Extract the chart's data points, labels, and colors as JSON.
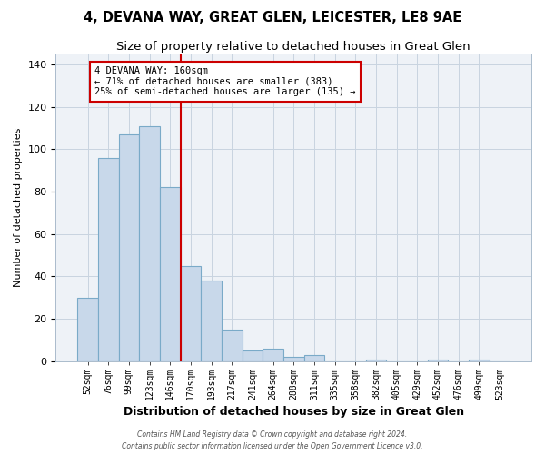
{
  "title": "4, DEVANA WAY, GREAT GLEN, LEICESTER, LE8 9AE",
  "subtitle": "Size of property relative to detached houses in Great Glen",
  "xlabel": "Distribution of detached houses by size in Great Glen",
  "ylabel": "Number of detached properties",
  "bar_labels": [
    "52sqm",
    "76sqm",
    "99sqm",
    "123sqm",
    "146sqm",
    "170sqm",
    "193sqm",
    "217sqm",
    "241sqm",
    "264sqm",
    "288sqm",
    "311sqm",
    "335sqm",
    "358sqm",
    "382sqm",
    "405sqm",
    "429sqm",
    "452sqm",
    "476sqm",
    "499sqm",
    "523sqm"
  ],
  "bar_values": [
    30,
    96,
    107,
    111,
    82,
    45,
    38,
    15,
    5,
    6,
    2,
    3,
    0,
    0,
    1,
    0,
    0,
    1,
    0,
    1,
    0
  ],
  "bar_color": "#c8d8ea",
  "bar_edge_color": "#7aaac8",
  "vline_color": "#cc0000",
  "annotation_title": "4 DEVANA WAY: 160sqm",
  "annotation_line1": "← 71% of detached houses are smaller (383)",
  "annotation_line2": "25% of semi-detached houses are larger (135) →",
  "annotation_box_color": "#cc0000",
  "ylim": [
    0,
    145
  ],
  "yticks": [
    0,
    20,
    40,
    60,
    80,
    100,
    120,
    140
  ],
  "footer1": "Contains HM Land Registry data © Crown copyright and database right 2024.",
  "footer2": "Contains public sector information licensed under the Open Government Licence v3.0.",
  "title_fontsize": 10.5,
  "subtitle_fontsize": 9.5,
  "xlabel_fontsize": 9,
  "ylabel_fontsize": 8,
  "bg_color": "#eef2f7",
  "grid_color": "#c8d4e0"
}
